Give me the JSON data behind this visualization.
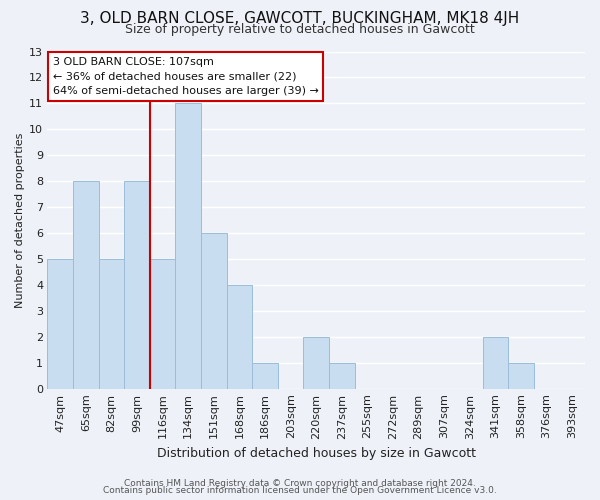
{
  "title": "3, OLD BARN CLOSE, GAWCOTT, BUCKINGHAM, MK18 4JH",
  "subtitle": "Size of property relative to detached houses in Gawcott",
  "xlabel": "Distribution of detached houses by size in Gawcott",
  "ylabel": "Number of detached properties",
  "bin_labels": [
    "47sqm",
    "65sqm",
    "82sqm",
    "99sqm",
    "116sqm",
    "134sqm",
    "151sqm",
    "168sqm",
    "186sqm",
    "203sqm",
    "220sqm",
    "237sqm",
    "255sqm",
    "272sqm",
    "289sqm",
    "307sqm",
    "324sqm",
    "341sqm",
    "358sqm",
    "376sqm",
    "393sqm"
  ],
  "bar_heights": [
    5,
    8,
    5,
    8,
    5,
    11,
    6,
    4,
    1,
    0,
    2,
    1,
    0,
    0,
    0,
    0,
    0,
    2,
    1,
    0,
    0
  ],
  "bar_color": "#c8ddf0",
  "bar_edge_color": "#9bbdd8",
  "vline_x": 3.5,
  "vline_color": "#cc0000",
  "annotation_title": "3 OLD BARN CLOSE: 107sqm",
  "annotation_line1": "← 36% of detached houses are smaller (22)",
  "annotation_line2": "64% of semi-detached houses are larger (39) →",
  "annotation_box_facecolor": "#ffffff",
  "annotation_box_edgecolor": "#cc0000",
  "ylim": [
    0,
    13
  ],
  "yticks": [
    0,
    1,
    2,
    3,
    4,
    5,
    6,
    7,
    8,
    9,
    10,
    11,
    12,
    13
  ],
  "footer1": "Contains HM Land Registry data © Crown copyright and database right 2024.",
  "footer2": "Contains public sector information licensed under the Open Government Licence v3.0.",
  "bg_color": "#eef2f8",
  "grid_color": "#ffffff",
  "title_fontsize": 11,
  "subtitle_fontsize": 9,
  "xlabel_fontsize": 9,
  "ylabel_fontsize": 8,
  "tick_fontsize": 8,
  "footer_fontsize": 6.5
}
